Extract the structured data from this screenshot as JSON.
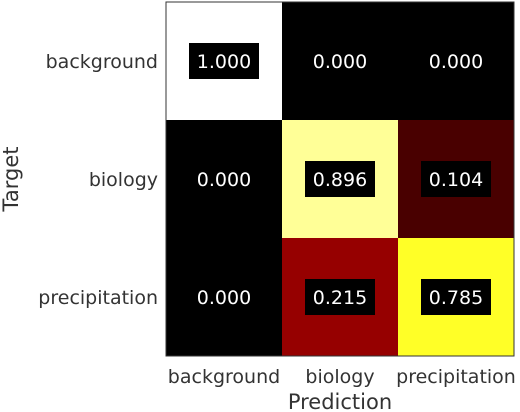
{
  "chart_data": {
    "type": "heatmap",
    "title": "",
    "xlabel": "Prediction",
    "ylabel": "Target",
    "x_categories": [
      "background",
      "biology",
      "precipitation"
    ],
    "y_categories": [
      "background",
      "biology",
      "precipitation"
    ],
    "values": [
      [
        1.0,
        0.0,
        0.0
      ],
      [
        0.0,
        0.896,
        0.104
      ],
      [
        0.0,
        0.215,
        0.785
      ]
    ],
    "value_labels": [
      [
        "1.000",
        "0.000",
        "0.000"
      ],
      [
        "0.000",
        "0.896",
        "0.104"
      ],
      [
        "0.000",
        "0.215",
        "0.785"
      ]
    ],
    "colormap": "hot",
    "vmin": 0,
    "vmax": 1,
    "label_box_color": "#000000",
    "label_text_color": "#ffffff"
  }
}
